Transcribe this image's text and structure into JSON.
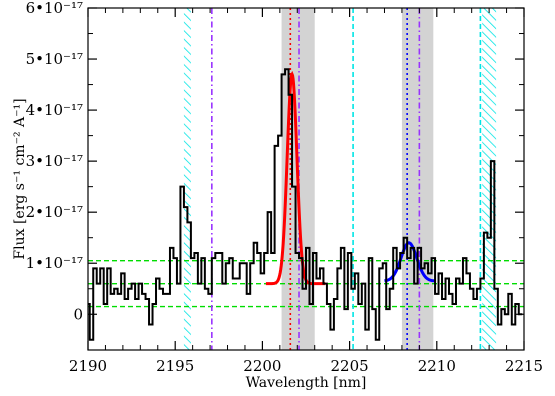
{
  "chart_data": {
    "type": "line",
    "title": "",
    "xlabel": "Wavelength [nm]",
    "ylabel": "Flux [erg s⁻¹ cm⁻² A⁻¹]",
    "xlim": [
      2190,
      2215
    ],
    "ylim": [
      -7e-18,
      6e-17
    ],
    "x_ticks": [
      2190,
      2195,
      2200,
      2205,
      2210,
      2215
    ],
    "x_tick_labels": [
      "2190",
      "2195",
      "2200",
      "2205",
      "2210",
      "2215"
    ],
    "y_ticks": [
      0,
      1e-17,
      2e-17,
      3e-17,
      4e-17,
      5e-17,
      6e-17
    ],
    "y_tick_labels": [
      "0",
      "1•10⁻¹⁷",
      "2•10⁻¹⁷",
      "3•10⁻¹⁷",
      "4•10⁻¹⁷",
      "5•10⁻¹⁷",
      "6•10⁻¹⁷"
    ],
    "grid": false,
    "spectrum": {
      "style": "steps",
      "color": "#000000",
      "x": [
        2190.0,
        2190.2,
        2190.4,
        2190.6,
        2190.8,
        2191.0,
        2191.2,
        2191.4,
        2191.6,
        2191.8,
        2192.0,
        2192.2,
        2192.4,
        2192.6,
        2192.8,
        2193.0,
        2193.2,
        2193.4,
        2193.6,
        2193.8,
        2194.0,
        2194.2,
        2194.4,
        2194.6,
        2194.8,
        2195.0,
        2195.2,
        2195.4,
        2195.6,
        2195.8,
        2196.0,
        2196.2,
        2196.4,
        2196.6,
        2196.8,
        2197.0,
        2197.2,
        2197.4,
        2197.6,
        2197.8,
        2198.0,
        2198.2,
        2198.4,
        2198.6,
        2198.8,
        2199.0,
        2199.2,
        2199.4,
        2199.6,
        2199.8,
        2200.0,
        2200.2,
        2200.4,
        2200.6,
        2200.8,
        2201.0,
        2201.2,
        2201.4,
        2201.6,
        2201.8,
        2202.0,
        2202.2,
        2202.4,
        2202.6,
        2202.8,
        2203.0,
        2203.2,
        2203.4,
        2203.6,
        2203.8,
        2204.0,
        2204.2,
        2204.4,
        2204.6,
        2204.8,
        2205.0,
        2205.2,
        2205.4,
        2205.6,
        2205.8,
        2206.0,
        2206.2,
        2206.4,
        2206.6,
        2206.8,
        2207.0,
        2207.2,
        2207.4,
        2207.6,
        2207.8,
        2208.0,
        2208.2,
        2208.4,
        2208.6,
        2208.8,
        2209.0,
        2209.2,
        2209.4,
        2209.6,
        2209.8,
        2210.0,
        2210.2,
        2210.4,
        2210.6,
        2210.8,
        2211.0,
        2211.2,
        2211.4,
        2211.6,
        2211.8,
        2212.0,
        2212.2,
        2212.4,
        2212.6,
        2212.8,
        2213.0,
        2213.2,
        2213.4,
        2213.6,
        2213.8,
        2214.0,
        2214.2,
        2214.4,
        2214.6,
        2214.8
      ],
      "y": [
        2e-18,
        -5e-18,
        9e-18,
        6e-18,
        9e-18,
        2e-18,
        9e-18,
        4e-18,
        5e-18,
        4e-18,
        8e-18,
        3e-18,
        5e-18,
        6e-18,
        3e-18,
        6e-18,
        4e-18,
        3e-18,
        -2e-18,
        2e-18,
        7e-18,
        5e-18,
        4e-18,
        4e-18,
        1.3e-17,
        1.1e-17,
        6e-18,
        2.5e-17,
        2.1e-17,
        1.8e-17,
        1.1e-17,
        1.2e-17,
        6e-18,
        1.1e-17,
        5e-18,
        4e-18,
        1.1e-17,
        1.2e-17,
        1.2e-17,
        6e-18,
        1e-17,
        1.1e-17,
        7e-18,
        7e-18,
        1e-17,
        1e-17,
        4e-18,
        1e-17,
        1.4e-17,
        1.2e-17,
        8e-18,
        1.2e-17,
        2e-17,
        1.2e-17,
        3.3e-17,
        3.5e-17,
        4.7e-17,
        4.8e-17,
        4.3e-17,
        2.5e-17,
        1.2e-17,
        1.1e-17,
        5e-18,
        1.3e-17,
        2e-18,
        1.2e-17,
        7e-18,
        9e-18,
        6e-18,
        2e-18,
        -3e-18,
        3e-18,
        9e-18,
        1.3e-17,
        1e-18,
        1.2e-17,
        5e-18,
        8e-18,
        2e-18,
        6e-18,
        -3e-18,
        1.1e-17,
        1e-18,
        -5e-18,
        9e-18,
        1e-17,
        1e-18,
        5e-18,
        1.3e-17,
        9e-18,
        1.2e-17,
        1.5e-17,
        1.1e-17,
        1.3e-17,
        6e-18,
        1.3e-17,
        9e-18,
        1e-17,
        8e-18,
        1.1e-17,
        4e-18,
        8e-18,
        3e-18,
        7e-18,
        4e-18,
        2e-18,
        7e-18,
        6e-18,
        1.1e-17,
        8e-18,
        5e-18,
        3e-18,
        5e-18,
        7e-18,
        1.6e-17,
        1.5e-17,
        3e-17,
        5e-18,
        -2e-18,
        1e-18,
        0.0,
        4e-18,
        -2e-18,
        2e-18,
        0.0
      ]
    },
    "fits": [
      {
        "color": "#ff0000",
        "center": 2201.7,
        "sigma": 0.28,
        "amplitude": 4.1e-17,
        "baseline": 6e-18,
        "x_range": [
          2200.2,
          2203.6
        ]
      },
      {
        "color": "#0000ff",
        "center": 2208.4,
        "sigma": 0.45,
        "amplitude": 7.5e-18,
        "baseline": 6.5e-18,
        "x_range": [
          2207.0,
          2209.9
        ]
      }
    ],
    "shaded_bands": [
      {
        "from": 2201.1,
        "to": 2203.0,
        "color": "#d3d3d3"
      },
      {
        "from": 2208.0,
        "to": 2209.8,
        "color": "#d3d3d3"
      }
    ],
    "hatched_bands": [
      {
        "from": 2195.5,
        "to": 2195.9,
        "color": "#00e5e5"
      },
      {
        "from": 2212.6,
        "to": 2213.4,
        "color": "#00e5e5"
      }
    ],
    "vertical_lines": [
      {
        "x": 2197.1,
        "color": "#9933ff",
        "style": "dashdot"
      },
      {
        "x": 2201.6,
        "color": "#ff0000",
        "style": "dotted"
      },
      {
        "x": 2202.1,
        "color": "#9933ff",
        "style": "dashdot"
      },
      {
        "x": 2205.2,
        "color": "#00e5e5",
        "style": "dashed"
      },
      {
        "x": 2208.3,
        "color": "#0000ff",
        "style": "dotted"
      },
      {
        "x": 2209.0,
        "color": "#9933ff",
        "style": "dashdot"
      },
      {
        "x": 2212.5,
        "color": "#00e5e5",
        "style": "dashed"
      }
    ],
    "horizontal_lines": [
      {
        "y": 1.05e-17,
        "color": "#00dd00",
        "style": "dashed"
      },
      {
        "y": 6e-18,
        "color": "#00dd00",
        "style": "dashed"
      },
      {
        "y": 1.5e-18,
        "color": "#00dd00",
        "style": "dashed"
      }
    ]
  }
}
